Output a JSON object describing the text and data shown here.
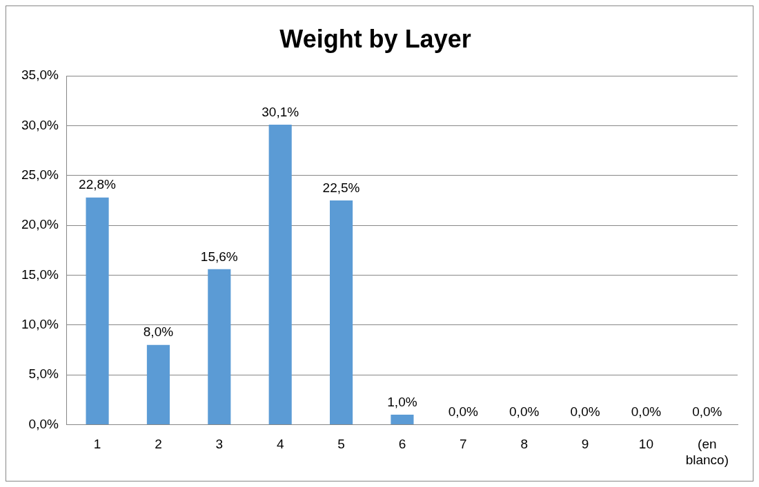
{
  "chart_data": {
    "type": "bar",
    "title": "Weight by Layer",
    "categories": [
      "1",
      "2",
      "3",
      "4",
      "5",
      "6",
      "7",
      "8",
      "9",
      "10",
      "(en blanco)"
    ],
    "values": [
      22.8,
      8.0,
      15.6,
      30.1,
      22.5,
      1.0,
      0,
      0,
      0,
      0,
      0
    ],
    "value_labels": [
      "22,8%",
      "8,0%",
      "15,6%",
      "30,1%",
      "22,5%",
      "1,0%",
      "0,0%",
      "0,0%",
      "0,0%",
      "0,0%",
      "0,0%"
    ],
    "color": "#5b9bd5",
    "ylim": [
      0,
      35
    ],
    "yticks": [
      {
        "value": 0,
        "label": "0,0%"
      },
      {
        "value": 5,
        "label": "5,0%"
      },
      {
        "value": 10,
        "label": "10,0%"
      },
      {
        "value": 15,
        "label": "15,0%"
      },
      {
        "value": 20,
        "label": "20,0%"
      },
      {
        "value": 25,
        "label": "25,0%"
      },
      {
        "value": 30,
        "label": "30,0%"
      },
      {
        "value": 35,
        "label": "35,0%"
      }
    ],
    "grid": "y",
    "legend": false
  }
}
